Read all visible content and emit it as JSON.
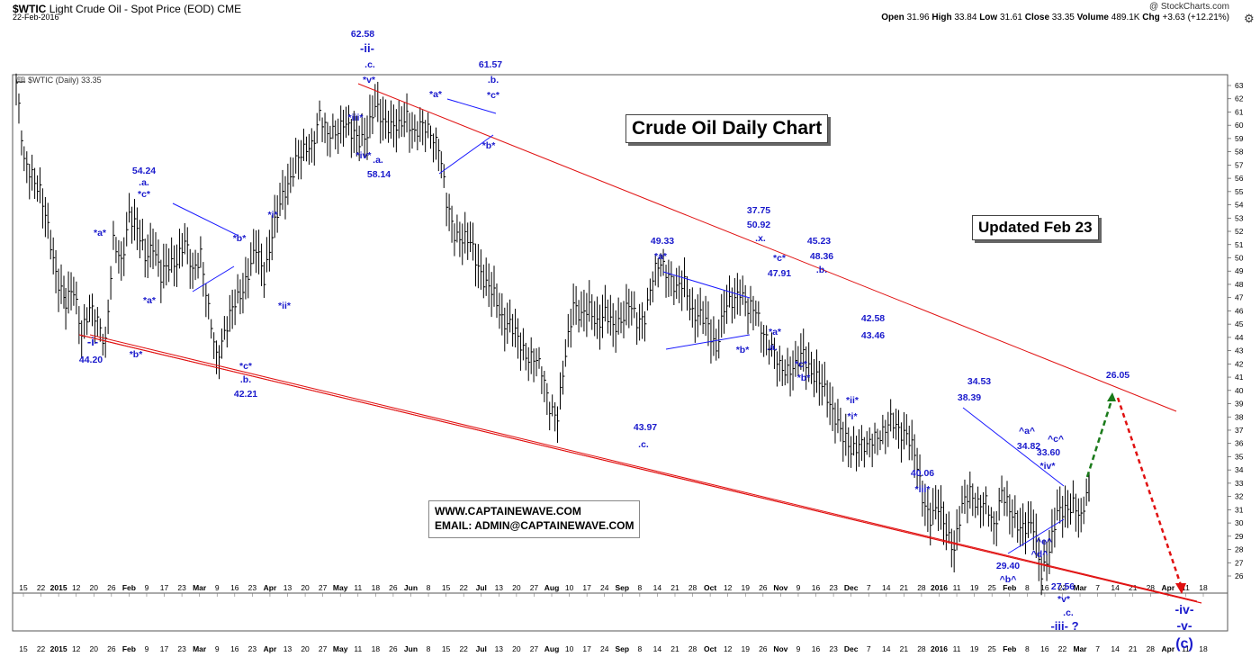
{
  "header": {
    "symbol": "$WTIC",
    "description": "Light Crude Oil - Spot Price (EOD) CME",
    "date": "22-Feb-2016",
    "copyright": "@ StockCharts.com",
    "ohlc": {
      "open_label": "Open",
      "open": "31.96",
      "high_label": "High",
      "high": "33.84",
      "low_label": "Low",
      "low": "31.61",
      "close_label": "Close",
      "close": "33.35",
      "volume_label": "Volume",
      "volume": "489.1K",
      "chg_label": "Chg",
      "chg": "+3.63 (+12.21%)"
    }
  },
  "boxes": {
    "title": "Crude Oil Daily Chart",
    "updated": "Updated Feb 23",
    "website": "WWW.CAPTAINEWAVE.COM",
    "email": "EMAIL: ADMIN@CAPTAINEWAVE.COM"
  },
  "chart_data": {
    "type": "ohlc",
    "legend": "$WTIC (Daily) 33.35",
    "ylim": [
      25,
      63.5
    ],
    "y_ticks": [
      26,
      27,
      28,
      29,
      30,
      31,
      32,
      33,
      34,
      35,
      36,
      37,
      38,
      39,
      40,
      41,
      42,
      43,
      44,
      45,
      46,
      47,
      48,
      49,
      50,
      51,
      52,
      53,
      54,
      55,
      56,
      57,
      58,
      59,
      60,
      61,
      62,
      63
    ],
    "x_ticks": [
      "15",
      "22",
      "2015",
      "12",
      "20",
      "26",
      "Feb",
      "9",
      "17",
      "23",
      "Mar",
      "9",
      "16",
      "23",
      "Apr",
      "13",
      "20",
      "27",
      "May",
      "11",
      "18",
      "26",
      "Jun",
      "8",
      "15",
      "22",
      "Jul",
      "13",
      "20",
      "27",
      "Aug",
      "10",
      "17",
      "24",
      "Sep",
      "8",
      "14",
      "21",
      "28",
      "Oct",
      "12",
      "19",
      "26",
      "Nov",
      "9",
      "16",
      "23",
      "Dec",
      "7",
      "14",
      "21",
      "28",
      "2016",
      "11",
      "19",
      "25",
      "Feb",
      "8",
      "16",
      "22",
      "Mar",
      "7",
      "14",
      "21",
      "28",
      "Apr",
      "11",
      "18"
    ],
    "price_path": [
      [
        0,
        63.2
      ],
      [
        4,
        57
      ],
      [
        8,
        56.5
      ],
      [
        12,
        55
      ],
      [
        16,
        52
      ],
      [
        20,
        49
      ],
      [
        25,
        46.5
      ],
      [
        29,
        47.5
      ],
      [
        33,
        44.6
      ],
      [
        37,
        46
      ],
      [
        41,
        45.2
      ],
      [
        45,
        43.8
      ],
      [
        49,
        51
      ],
      [
        53,
        49.5
      ],
      [
        57,
        53.5
      ],
      [
        61,
        52
      ],
      [
        65,
        50
      ],
      [
        69,
        51.2
      ],
      [
        73,
        48.4
      ],
      [
        77,
        49.5
      ],
      [
        81,
        50
      ],
      [
        85,
        51
      ],
      [
        89,
        49
      ],
      [
        93,
        50.5
      ],
      [
        97,
        45.8
      ],
      [
        101,
        42.5
      ],
      [
        105,
        44.5
      ],
      [
        109,
        46
      ],
      [
        113,
        47.2
      ],
      [
        117,
        49
      ],
      [
        121,
        50.6
      ],
      [
        125,
        48.5
      ],
      [
        129,
        52
      ],
      [
        133,
        53.8
      ],
      [
        137,
        55.5
      ],
      [
        141,
        57.5
      ],
      [
        145,
        57.8
      ],
      [
        149,
        58.5
      ],
      [
        153,
        61
      ],
      [
        157,
        59
      ],
      [
        161,
        59.6
      ],
      [
        165,
        60.4
      ],
      [
        169,
        59.2
      ],
      [
        173,
        59
      ],
      [
        177,
        59.5
      ],
      [
        181,
        61.2
      ],
      [
        185,
        60.5
      ],
      [
        189,
        60
      ],
      [
        193,
        59.6
      ],
      [
        197,
        60.8
      ],
      [
        201,
        59.4
      ],
      [
        205,
        59.8
      ],
      [
        209,
        59.6
      ],
      [
        213,
        58.5
      ],
      [
        217,
        54
      ],
      [
        221,
        52
      ],
      [
        225,
        51.5
      ],
      [
        229,
        51
      ],
      [
        233,
        49.5
      ],
      [
        237,
        48
      ],
      [
        241,
        47
      ],
      [
        245,
        45.5
      ],
      [
        249,
        45
      ],
      [
        253,
        43.7
      ],
      [
        257,
        42.8
      ],
      [
        261,
        42.5
      ],
      [
        265,
        41.3
      ],
      [
        269,
        39
      ],
      [
        273,
        38
      ],
      [
        277,
        42.5
      ],
      [
        281,
        46.8
      ],
      [
        285,
        45.5
      ],
      [
        289,
        46
      ],
      [
        293,
        45.2
      ],
      [
        297,
        45.8
      ],
      [
        301,
        44.6
      ],
      [
        305,
        45.5
      ],
      [
        309,
        46.5
      ],
      [
        313,
        45
      ],
      [
        317,
        45.8
      ],
      [
        321,
        48.5
      ],
      [
        325,
        49.5
      ],
      [
        329,
        49
      ],
      [
        333,
        47.5
      ],
      [
        337,
        48
      ],
      [
        341,
        46
      ],
      [
        345,
        45.5
      ],
      [
        349,
        44.7
      ],
      [
        353,
        43.3
      ],
      [
        357,
        46
      ],
      [
        361,
        46.6
      ],
      [
        365,
        47.8
      ],
      [
        369,
        46
      ],
      [
        373,
        46
      ],
      [
        377,
        44.5
      ],
      [
        381,
        43
      ],
      [
        385,
        41.8
      ],
      [
        389,
        41.7
      ],
      [
        393,
        41.6
      ],
      [
        397,
        42.8
      ],
      [
        401,
        41.5
      ],
      [
        405,
        40.5
      ],
      [
        409,
        39.5
      ],
      [
        413,
        38.2
      ],
      [
        417,
        36.3
      ],
      [
        421,
        35.5
      ],
      [
        425,
        36.2
      ],
      [
        429,
        35.5
      ],
      [
        433,
        36.5
      ],
      [
        437,
        37
      ],
      [
        441,
        37.5
      ],
      [
        445,
        37
      ],
      [
        449,
        36.9
      ],
      [
        453,
        35
      ],
      [
        457,
        32
      ],
      [
        461,
        30.5
      ],
      [
        465,
        31
      ],
      [
        469,
        29.5
      ],
      [
        473,
        28.2
      ],
      [
        477,
        31
      ],
      [
        481,
        32.5
      ],
      [
        485,
        31.5
      ],
      [
        489,
        31.3
      ],
      [
        493,
        29.8
      ],
      [
        497,
        32.5
      ],
      [
        501,
        30.7
      ],
      [
        505,
        30
      ],
      [
        509,
        29.8
      ],
      [
        513,
        29.5
      ],
      [
        517,
        26.3
      ],
      [
        521,
        28
      ],
      [
        525,
        30.5
      ],
      [
        529,
        31.2
      ],
      [
        533,
        31.5
      ],
      [
        537,
        30
      ],
      [
        541,
        33.35
      ]
    ],
    "price_path_x_unit": "trading-day index",
    "annotations": [
      {
        "text": "62.58"
      },
      {
        "text": "-ii-"
      },
      {
        "text": ".c."
      },
      {
        "text": "*v*"
      },
      {
        "text": "61.57"
      },
      {
        "text": ".b."
      },
      {
        "text": "*c*"
      },
      {
        "text": "*a*"
      },
      {
        "text": "*b*"
      },
      {
        "text": "*iii*"
      },
      {
        "text": "*iv*"
      },
      {
        "text": ".a."
      },
      {
        "text": "58.14"
      },
      {
        "text": "54.24"
      },
      {
        "text": ".a."
      },
      {
        "text": "*c*"
      },
      {
        "text": "*a*"
      },
      {
        "text": "*b*"
      },
      {
        "text": "*a*"
      },
      {
        "text": "-i-"
      },
      {
        "text": "44.20"
      },
      {
        "text": "*b*"
      },
      {
        "text": "*i*"
      },
      {
        "text": "*ii*"
      },
      {
        "text": "*c*"
      },
      {
        "text": ".b."
      },
      {
        "text": "42.21"
      },
      {
        "text": "49.33"
      },
      {
        "text": "*a*"
      },
      {
        "text": "*b*"
      },
      {
        "text": "43.97"
      },
      {
        "text": ".c."
      },
      {
        "text": "37.75"
      },
      {
        "text": "50.92"
      },
      {
        "text": ".x."
      },
      {
        "text": "*c*"
      },
      {
        "text": "47.91"
      },
      {
        "text": "*a*"
      },
      {
        "text": ".a."
      },
      {
        "text": "45.23"
      },
      {
        "text": "48.36"
      },
      {
        "text": ".b."
      },
      {
        "text": "*c*"
      },
      {
        "text": "*b*"
      },
      {
        "text": "42.58"
      },
      {
        "text": "43.46"
      },
      {
        "text": "*ii*"
      },
      {
        "text": "*i*"
      },
      {
        "text": "40.06"
      },
      {
        "text": "*iii*"
      },
      {
        "text": "34.53"
      },
      {
        "text": "38.39"
      },
      {
        "text": "^a^"
      },
      {
        "text": "34.82"
      },
      {
        "text": "^c^"
      },
      {
        "text": "33.60"
      },
      {
        "text": "*iv*"
      },
      {
        "text": "^e^"
      },
      {
        "text": "^d^"
      },
      {
        "text": "29.40"
      },
      {
        "text": "^b^"
      },
      {
        "text": "27.56"
      },
      {
        "text": "*v*"
      },
      {
        "text": ".c."
      },
      {
        "text": "-iii- ?"
      },
      {
        "text": "26.05"
      },
      {
        "text": "-iv-"
      },
      {
        "text": "-v-"
      },
      {
        "text": "(c)"
      },
      {
        "text": "b"
      }
    ],
    "colors": {
      "bars": "#000000",
      "channel": "#e01010",
      "triangle": "#1a1aff",
      "labels": "#1a1acc",
      "up_arrow": "#1a7a1a",
      "down_arrow": "#e01010"
    },
    "grid": false
  }
}
